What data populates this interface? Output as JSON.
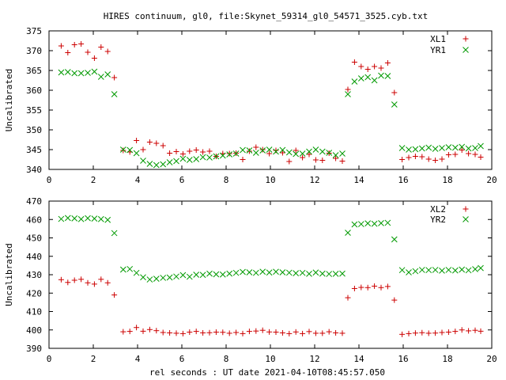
{
  "title": "HIRES continuum, gl0, file:Skynet_59314_gl0_54571_3525.cyb.txt",
  "xlabel": "rel seconds : UT date 2021-04-10T08:45:57.050",
  "colors": {
    "series_a": "#cc0000",
    "series_b": "#009900"
  },
  "chart_data": [
    {
      "type": "scatter",
      "ylabel": "Uncalibrated",
      "xlim": [
        0,
        20
      ],
      "ylim": [
        340,
        375
      ],
      "xticks": [
        "0",
        "2",
        "4",
        "6",
        "8",
        "10",
        "12",
        "14",
        "16",
        "18",
        "20"
      ],
      "yticks": [
        "340",
        "345",
        "350",
        "355",
        "360",
        "365",
        "370",
        "375"
      ],
      "legend": "top-right",
      "x": [
        0.55,
        0.85,
        1.15,
        1.45,
        1.75,
        2.05,
        2.35,
        2.65,
        2.95,
        3.35,
        3.65,
        3.95,
        4.25,
        4.55,
        4.85,
        5.15,
        5.45,
        5.75,
        6.05,
        6.35,
        6.65,
        6.95,
        7.25,
        7.55,
        7.85,
        8.15,
        8.45,
        8.75,
        9.05,
        9.35,
        9.65,
        9.95,
        10.25,
        10.55,
        10.85,
        11.15,
        11.45,
        11.75,
        12.05,
        12.35,
        12.65,
        12.95,
        13.25,
        13.5,
        13.8,
        14.1,
        14.4,
        14.7,
        15.0,
        15.3,
        15.6,
        15.95,
        16.25,
        16.55,
        16.85,
        17.15,
        17.45,
        17.75,
        18.05,
        18.35,
        18.65,
        18.95,
        19.25,
        19.5
      ],
      "series": [
        {
          "name": "XL1",
          "marker": "plus",
          "values": [
            371.2,
            369.5,
            371.5,
            371.7,
            369.6,
            368.1,
            370.9,
            369.8,
            363.2,
            344.8,
            344.4,
            347.3,
            345.0,
            346.9,
            346.6,
            346.0,
            344.1,
            344.5,
            343.9,
            344.6,
            344.9,
            344.4,
            344.6,
            343.3,
            344.0,
            344.0,
            344.1,
            342.5,
            344.6,
            345.6,
            345.0,
            344.0,
            344.8,
            344.2,
            342.0,
            344.8,
            343.0,
            343.8,
            342.4,
            342.3,
            344.1,
            342.8,
            342.1,
            360.2,
            367.1,
            366.0,
            365.3,
            366.0,
            365.6,
            366.9,
            359.4,
            342.5,
            343.0,
            343.3,
            343.2,
            342.6,
            342.3,
            342.6,
            343.7,
            343.8,
            344.9,
            344.0,
            343.8,
            343.1
          ]
        },
        {
          "name": "YR1",
          "marker": "cross",
          "values": [
            364.5,
            364.6,
            364.3,
            364.3,
            364.4,
            364.7,
            363.4,
            364.0,
            359.0,
            345.0,
            344.9,
            344.1,
            342.2,
            341.4,
            341.1,
            341.3,
            341.8,
            342.1,
            342.7,
            342.4,
            342.6,
            343.1,
            343.0,
            343.3,
            343.5,
            343.8,
            344.0,
            344.9,
            344.8,
            344.2,
            344.8,
            345.0,
            344.5,
            344.9,
            344.3,
            343.9,
            344.0,
            344.5,
            345.0,
            344.5,
            344.2,
            343.6,
            344.0,
            359.0,
            362.2,
            363.0,
            363.3,
            362.5,
            363.7,
            363.6,
            356.4,
            345.4,
            345.0,
            345.1,
            345.3,
            345.5,
            345.2,
            345.4,
            345.6,
            345.5,
            345.7,
            345.3,
            345.4,
            345.9
          ]
        }
      ]
    },
    {
      "type": "scatter",
      "ylabel": "Uncalibrated",
      "xlim": [
        0,
        20
      ],
      "ylim": [
        390,
        470
      ],
      "xticks": [
        "0",
        "2",
        "4",
        "6",
        "8",
        "10",
        "12",
        "14",
        "16",
        "18",
        "20"
      ],
      "yticks": [
        "390",
        "400",
        "410",
        "420",
        "430",
        "440",
        "450",
        "460",
        "470"
      ],
      "legend": "top-right",
      "x": [
        0.55,
        0.85,
        1.15,
        1.45,
        1.75,
        2.05,
        2.35,
        2.65,
        2.95,
        3.35,
        3.65,
        3.95,
        4.25,
        4.55,
        4.85,
        5.15,
        5.45,
        5.75,
        6.05,
        6.35,
        6.65,
        6.95,
        7.25,
        7.55,
        7.85,
        8.15,
        8.45,
        8.75,
        9.05,
        9.35,
        9.65,
        9.95,
        10.25,
        10.55,
        10.85,
        11.15,
        11.45,
        11.75,
        12.05,
        12.35,
        12.65,
        12.95,
        13.25,
        13.5,
        13.8,
        14.1,
        14.4,
        14.7,
        15.0,
        15.3,
        15.6,
        15.95,
        16.25,
        16.55,
        16.85,
        17.15,
        17.45,
        17.75,
        18.05,
        18.35,
        18.65,
        18.95,
        19.25,
        19.5
      ],
      "series": [
        {
          "name": "XL2",
          "marker": "plus",
          "values": [
            427.3,
            425.8,
            427.0,
            427.5,
            425.6,
            424.9,
            427.5,
            425.6,
            419.0,
            399.0,
            399.2,
            401.3,
            399.3,
            400.2,
            399.6,
            398.6,
            398.4,
            398.2,
            398.0,
            398.8,
            399.2,
            398.4,
            398.5,
            398.8,
            398.7,
            398.2,
            398.6,
            398.0,
            399.2,
            399.4,
            399.8,
            398.9,
            398.8,
            398.4,
            398.0,
            398.9,
            398.0,
            399.1,
            398.2,
            398.2,
            399.0,
            398.4,
            398.2,
            417.5,
            422.5,
            423.1,
            423.0,
            423.8,
            423.0,
            423.6,
            416.2,
            397.6,
            398.0,
            398.3,
            398.5,
            398.2,
            398.3,
            398.6,
            398.8,
            399.2,
            400.0,
            399.5,
            399.8,
            399.3
          ]
        },
        {
          "name": "YR2",
          "marker": "cross",
          "values": [
            460.3,
            460.8,
            460.6,
            460.2,
            460.7,
            460.5,
            460.2,
            459.8,
            452.6,
            432.8,
            433.1,
            431.0,
            428.6,
            427.4,
            427.8,
            428.3,
            428.5,
            429.0,
            429.8,
            428.9,
            430.0,
            429.9,
            430.6,
            430.2,
            430.1,
            430.6,
            431.0,
            431.5,
            431.3,
            431.0,
            431.6,
            431.2,
            431.6,
            431.3,
            431.1,
            430.8,
            431.0,
            430.5,
            431.2,
            430.6,
            430.4,
            430.5,
            430.6,
            452.8,
            457.3,
            457.5,
            457.9,
            457.7,
            458.0,
            458.2,
            449.2,
            432.5,
            431.3,
            431.9,
            432.6,
            432.5,
            432.6,
            432.2,
            432.6,
            432.3,
            432.8,
            432.4,
            433.0,
            433.6
          ]
        }
      ]
    }
  ]
}
